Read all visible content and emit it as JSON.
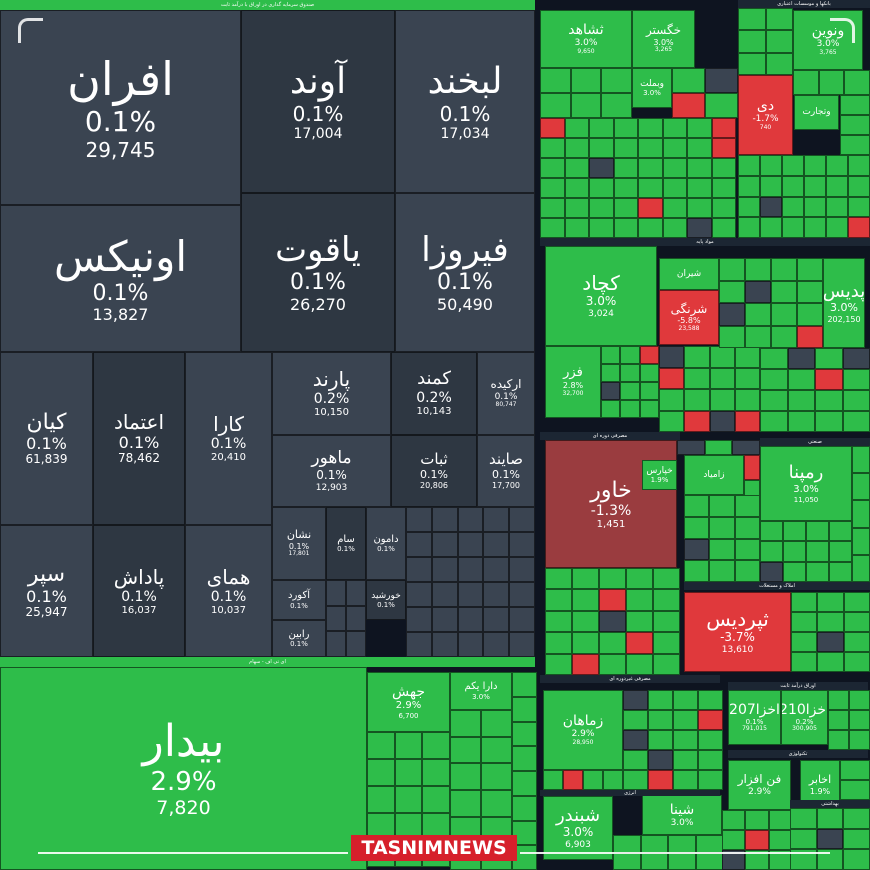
{
  "colors": {
    "green": "#2ebd4a",
    "red": "#e0393c",
    "dark_red": "#9a3c3f",
    "slate": "#3a4451",
    "slate_dark": "#2e3742",
    "bg": "#0e1420"
  },
  "logo": {
    "text": "TASNIMNEWS"
  },
  "section_labels": [
    "صندوق سرمایه گذاری در اوراق با درآمد ثابت",
    "ای تی اف - سهام",
    "بانکها و موسسات اعتباری",
    "مواد پایه",
    "مصرفی دوره ای",
    "مصرفی غیردوره ای",
    "اوراق درآمد ثابت",
    "املاک و مستغلات",
    "انرژی",
    "بهداشتی",
    "تکنولوژی",
    "صنعتی"
  ],
  "chart_data": {
    "type": "treemap",
    "tiles": [
      {
        "name": "افران",
        "change": "0.1%",
        "volume": "29,745"
      },
      {
        "name": "آوند",
        "change": "0.1%",
        "volume": "17,004"
      },
      {
        "name": "لبخند",
        "change": "0.1%",
        "volume": "17,034"
      },
      {
        "name": "اونیکس",
        "change": "0.1%",
        "volume": "13,827"
      },
      {
        "name": "یاقوت",
        "change": "0.1%",
        "volume": "26,270"
      },
      {
        "name": "فیروزا",
        "change": "0.1%",
        "volume": "50,490"
      },
      {
        "name": "کیان",
        "change": "0.1%",
        "volume": "61,839"
      },
      {
        "name": "اعتماد",
        "change": "0.1%",
        "volume": "78,462"
      },
      {
        "name": "کارا",
        "change": "0.1%",
        "volume": "20,410"
      },
      {
        "name": "پارند",
        "change": "0.2%",
        "volume": "10,150"
      },
      {
        "name": "کمند",
        "change": "0.2%",
        "volume": "10,143"
      },
      {
        "name": "ارکیده",
        "change": "0.1%",
        "volume": "80,747"
      },
      {
        "name": "ماهور",
        "change": "0.1%",
        "volume": "12,903"
      },
      {
        "name": "ثبات",
        "change": "0.1%",
        "volume": "20,806"
      },
      {
        "name": "صایند",
        "change": "0.1%",
        "volume": "17,700"
      },
      {
        "name": "سپر",
        "change": "0.1%",
        "volume": "25,947"
      },
      {
        "name": "پاداش",
        "change": "0.1%",
        "volume": "16,037"
      },
      {
        "name": "همای",
        "change": "0.1%",
        "volume": "10,037"
      },
      {
        "name": "نشان",
        "change": "0.1%",
        "volume": "17,801"
      },
      {
        "name": "سام",
        "change": "0.1%",
        "volume": ""
      },
      {
        "name": "دامون",
        "change": "0.1%",
        "volume": ""
      },
      {
        "name": "آکورد",
        "change": "0.1%",
        "volume": ""
      },
      {
        "name": "خورشید",
        "change": "0.1%",
        "volume": ""
      },
      {
        "name": "رابین",
        "change": "0.1%",
        "volume": ""
      },
      {
        "name": "بیدار",
        "change": "2.9%",
        "volume": "7,820"
      },
      {
        "name": "جهش",
        "change": "2.9%",
        "volume": "6,700"
      },
      {
        "name": "دارا یکم",
        "change": "3.0%",
        "volume": ""
      },
      {
        "name": "ثشاهد",
        "change": "3.0%",
        "volume": "9,650"
      },
      {
        "name": "خگستر",
        "change": "3.0%",
        "volume": "3,265"
      },
      {
        "name": "وبملت",
        "change": "3.0%",
        "volume": ""
      },
      {
        "name": "وتجارت",
        "change": "",
        "volume": ""
      },
      {
        "name": "دی",
        "change": "-1.7%",
        "volume": "740"
      },
      {
        "name": "ونوین",
        "change": "3.0%",
        "volume": "3,765"
      },
      {
        "name": "کچاد",
        "change": "3.0%",
        "volume": "3,024"
      },
      {
        "name": "شیران",
        "change": "",
        "volume": ""
      },
      {
        "name": "شرنگی",
        "change": "-5.8%",
        "volume": "23,588"
      },
      {
        "name": "فزر",
        "change": "2.8%",
        "volume": "32,700"
      },
      {
        "name": "پدیس",
        "change": "3.0%",
        "volume": "202,150"
      },
      {
        "name": "خاور",
        "change": "-1.3%",
        "volume": "1,451"
      },
      {
        "name": "خپارس",
        "change": "1.9%",
        "volume": ""
      },
      {
        "name": "زامیاد",
        "change": "",
        "volume": ""
      },
      {
        "name": "رمپنا",
        "change": "3.0%",
        "volume": "11,050"
      },
      {
        "name": "ثپردیس",
        "change": "-3.7%",
        "volume": "13,610"
      },
      {
        "name": "زماهان",
        "change": "2.9%",
        "volume": "28,950"
      },
      {
        "name": "شبندر",
        "change": "3.0%",
        "volume": "6,903"
      },
      {
        "name": "شینا",
        "change": "3.0%",
        "volume": ""
      },
      {
        "name": "اخزا207",
        "change": "0.1%",
        "volume": "791,015"
      },
      {
        "name": "اخزا210",
        "change": "0.2%",
        "volume": "300,905"
      },
      {
        "name": "فن افزار",
        "change": "2.9%",
        "volume": ""
      },
      {
        "name": "اخابر",
        "change": "1.9%",
        "volume": ""
      }
    ]
  }
}
